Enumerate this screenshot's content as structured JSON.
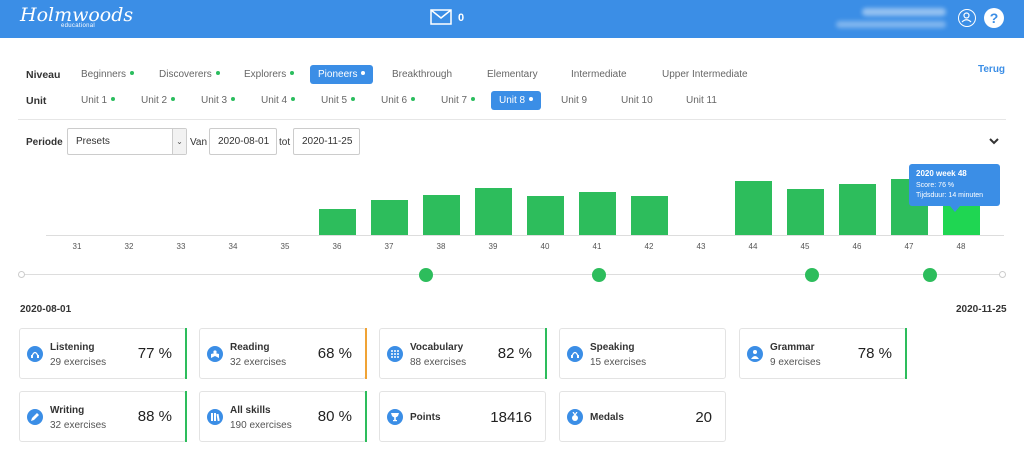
{
  "header": {
    "logo": "Holmwoods",
    "logo_sub": "educational",
    "mail_count": "0",
    "help_label": "?"
  },
  "filters": {
    "niveau_label": "Niveau",
    "unit_label": "Unit",
    "back_label": "Terug",
    "levels": [
      {
        "label": "Beginners",
        "dot": true,
        "active": false
      },
      {
        "label": "Discoverers",
        "dot": true,
        "active": false
      },
      {
        "label": "Explorers",
        "dot": true,
        "active": false
      },
      {
        "label": "Pioneers",
        "dot": true,
        "active": true
      },
      {
        "label": "Breakthrough",
        "dot": false,
        "active": false
      },
      {
        "label": "Elementary",
        "dot": false,
        "active": false
      },
      {
        "label": "Intermediate",
        "dot": false,
        "active": false
      },
      {
        "label": "Upper Intermediate",
        "dot": false,
        "active": false
      }
    ],
    "units": [
      {
        "label": "Unit 1",
        "dot": true,
        "active": false
      },
      {
        "label": "Unit 2",
        "dot": true,
        "active": false
      },
      {
        "label": "Unit 3",
        "dot": true,
        "active": false
      },
      {
        "label": "Unit 4",
        "dot": true,
        "active": false
      },
      {
        "label": "Unit 5",
        "dot": true,
        "active": false
      },
      {
        "label": "Unit 6",
        "dot": true,
        "active": false
      },
      {
        "label": "Unit 7",
        "dot": true,
        "active": false
      },
      {
        "label": "Unit 8",
        "dot": true,
        "active": true
      },
      {
        "label": "Unit 9",
        "dot": false,
        "active": false
      },
      {
        "label": "Unit 10",
        "dot": false,
        "active": false
      },
      {
        "label": "Unit 11",
        "dot": false,
        "active": false
      }
    ]
  },
  "period": {
    "label": "Periode",
    "preset_value": "Presets",
    "van_label": "Van",
    "from_value": "2020-08-01",
    "tot_label": "tot",
    "to_value": "2020-11-25"
  },
  "chart_data": {
    "type": "bar",
    "categories": [
      "31",
      "32",
      "33",
      "34",
      "35",
      "36",
      "37",
      "38",
      "39",
      "40",
      "41",
      "42",
      "43",
      "44",
      "45",
      "46",
      "47",
      "48"
    ],
    "values": [
      0,
      0,
      0,
      0,
      0,
      55,
      75,
      85,
      101,
      84,
      92,
      84,
      0,
      115,
      98,
      110,
      120,
      76
    ],
    "highlighted_index": 17,
    "ylim": [
      0,
      150
    ],
    "colors": {
      "bar": "#2dbd5c",
      "highlight": "#1fd652"
    },
    "tooltip": {
      "title": "2020 week 48",
      "score": "Score: 76 %",
      "duration": "Tijdsduur: 14 minuten"
    }
  },
  "range": {
    "start": "2020-08-01",
    "end": "2020-11-25"
  },
  "skills": [
    {
      "name": "Listening",
      "sub": "29 exercises",
      "value": "77 %",
      "icon": "headphones-icon",
      "border": "green"
    },
    {
      "name": "Reading",
      "sub": "32 exercises",
      "value": "68 %",
      "icon": "reading-icon",
      "border": "orange"
    },
    {
      "name": "Vocabulary",
      "sub": "88 exercises",
      "value": "82 %",
      "icon": "grid-icon",
      "border": "green"
    },
    {
      "name": "Speaking",
      "sub": "15 exercises",
      "value": "",
      "icon": "headset-icon",
      "border": "none"
    },
    {
      "name": "Grammar",
      "sub": "9 exercises",
      "value": "78 %",
      "icon": "person-icon",
      "border": "green"
    },
    {
      "name": "Writing",
      "sub": "32 exercises",
      "value": "88 %",
      "icon": "pencil-icon",
      "border": "green"
    },
    {
      "name": "All skills",
      "sub": "190 exercises",
      "value": "80 %",
      "icon": "books-icon",
      "border": "green"
    },
    {
      "name": "Points",
      "sub": "",
      "value": "18416",
      "icon": "trophy-icon",
      "border": "none"
    },
    {
      "name": "Medals",
      "sub": "",
      "value": "20",
      "icon": "medal-icon",
      "border": "none"
    }
  ],
  "colors": {
    "accent": "#3b8ee6",
    "success": "#2dbd5c",
    "warning": "#f0a335"
  }
}
